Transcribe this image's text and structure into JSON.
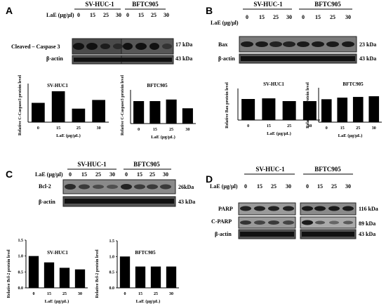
{
  "panels": {
    "A": {
      "letter": "A",
      "blot": {
        "groups": [
          "SV-HUC-1",
          "BFTC905"
        ],
        "conc_label": "LaE (μg/μl)",
        "lanes": [
          "0",
          "15",
          "25",
          "30"
        ],
        "rows": [
          {
            "label": "Cleaved – Caspase 3",
            "kda": "17 kDa"
          },
          {
            "label": "β-actin",
            "kda": "43 kDa"
          }
        ]
      }
    },
    "B": {
      "letter": "B",
      "blot": {
        "groups": [
          "SV-HUC-1",
          "BFTC905"
        ],
        "conc_label": "LaE (μg/μl)",
        "lanes": [
          "0",
          "15",
          "25",
          "30"
        ],
        "rows": [
          {
            "label": "Bax",
            "kda": "23 kDa"
          },
          {
            "label": "β-actin",
            "kda": "43 kDa"
          }
        ]
      }
    },
    "C": {
      "letter": "C",
      "blot": {
        "groups": [
          "SV-HUC-1",
          "BFTC905"
        ],
        "conc_label": "LaE (μg/μl)",
        "lanes": [
          "0",
          "15",
          "25",
          "30"
        ],
        "rows": [
          {
            "label": "Bcl-2",
            "kda": "26kDa"
          },
          {
            "label": "β-actin",
            "kda": "43 kDa"
          }
        ]
      }
    },
    "D": {
      "letter": "D",
      "blot": {
        "groups": [
          "SV-HUC-1",
          "BFTC905"
        ],
        "conc_label": "LaE (μg/μl)",
        "lanes": [
          "0",
          "15",
          "25",
          "30"
        ],
        "rows": [
          {
            "label": "PARP",
            "kda": "116 kDa"
          },
          {
            "label": "C-PARP",
            "kda": "89 kDa"
          },
          {
            "label": "β-actin",
            "kda": "43 kDa"
          }
        ]
      }
    }
  },
  "chart_data": [
    {
      "id": "A1",
      "type": "bar",
      "title": "SV-HUC1",
      "categories": [
        "0",
        "15",
        "25",
        "30"
      ],
      "values": [
        1.0,
        1.6,
        0.7,
        1.15
      ],
      "xlabel": "LaE (μg/μL)",
      "ylabel": "Relative C-Caspase3 protein level",
      "ylim": [
        0,
        2.0
      ],
      "ylim_note": "no y tick labels printed"
    },
    {
      "id": "A2",
      "type": "bar",
      "title": "BFTC905",
      "categories": [
        "0",
        "15",
        "25",
        "30"
      ],
      "values": [
        1.0,
        1.0,
        1.07,
        0.68
      ],
      "xlabel": "LaE (μg/μL)",
      "ylabel": "Relative C-Caspase3 protein level",
      "ylim": [
        0,
        1.5
      ]
    },
    {
      "id": "B1",
      "type": "bar",
      "title": "SV-HUC1",
      "categories": [
        "0",
        "15",
        "25",
        "30"
      ],
      "values": [
        1.0,
        1.03,
        0.9,
        0.9
      ],
      "xlabel": "LaE (μg/μL)",
      "ylabel": "Relative Bax protein level",
      "ylim": [
        0,
        1.5
      ]
    },
    {
      "id": "B2",
      "type": "bar",
      "title": "BFTC905",
      "categories": [
        "0",
        "15",
        "25",
        "30"
      ],
      "values": [
        1.0,
        1.07,
        1.1,
        1.13
      ],
      "xlabel": "LaE (μg/μL)",
      "ylabel": "Relative Bax protein level",
      "ylim": [
        0,
        1.5
      ]
    },
    {
      "id": "C1",
      "type": "bar",
      "title": "SV-HUC1",
      "categories": [
        "0",
        "15",
        "25",
        "30"
      ],
      "values": [
        1.0,
        0.8,
        0.63,
        0.58
      ],
      "xlabel": "LaE (μg/μL)",
      "ylabel": "Relative Bcl-2 protein level",
      "ylim": [
        0,
        1.5
      ],
      "yticks": [
        "0.0",
        "0.5",
        "1.0",
        "1.5"
      ]
    },
    {
      "id": "C2",
      "type": "bar",
      "title": "BFTC905",
      "categories": [
        "0",
        "15",
        "25",
        "30"
      ],
      "values": [
        1.0,
        0.68,
        0.68,
        0.68
      ],
      "xlabel": "LaE (μg/μL)",
      "ylabel": "Relative Bcl-2 protein level",
      "ylim": [
        0,
        1.5
      ],
      "yticks": [
        "0.0",
        "0.5",
        "1.0",
        "1.5"
      ]
    }
  ]
}
